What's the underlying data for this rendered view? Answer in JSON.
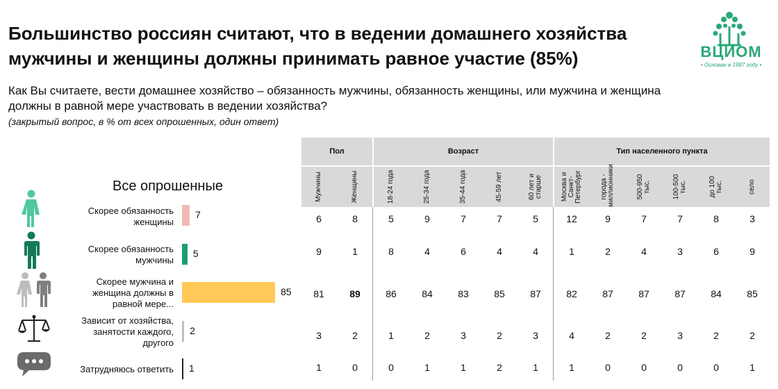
{
  "title": "Большинство россиян считают, что в ведении домашнего хозяйства мужчины и женщины должны принимать равное участие (85%)",
  "question": "Как Вы считаете, вести домашнее хозяйство – обязанность мужчины, обязанность женщины, или мужчина и женщина должны в равной мере участвовать в ведении хозяйства?",
  "note": "(закрытый вопрос, в % от всех опрошенных, один ответ)",
  "logo": {
    "name": "ВЦИОМ",
    "subtitle": "• Основан в 1987 году •",
    "color": "#2aa878"
  },
  "all_label": "Все опрошенные",
  "icons": [
    "woman-icon",
    "man-icon",
    "man-woman-icon",
    "scales-icon",
    "speech-bubble-icon"
  ],
  "groups": [
    "Пол",
    "Возраст",
    "Тип населенного пункта"
  ],
  "columns": [
    "Мужчины",
    "Женщины",
    "18-24 года",
    "25-34 года",
    "35-44 года",
    "45-59 лет",
    "60 лет и старше",
    "Москва и Санкт-Петербург",
    "города - миллионники",
    "500-950 тыс.",
    "100-500 тыс.",
    "до 100 тыс.",
    "село"
  ],
  "chart_data": {
    "type": "bar",
    "orientation": "horizontal",
    "categories": [
      "Скорее обязанность женщины",
      "Скорее обязанность мужчины",
      "Скорее мужчина и женщина должны в равной мере...",
      "Зависит от хозяйства, занятости каждого, другого",
      "Затрудняюсь ответить"
    ],
    "values": [
      7,
      5,
      85,
      2,
      1
    ],
    "colors": [
      "#f2b9b3",
      "#1e9e6e",
      "#ffc857",
      "#bfbfbf",
      "#222222"
    ],
    "xlim": [
      0,
      85
    ]
  },
  "table": {
    "rows": [
      [
        "6",
        "8",
        "5",
        "9",
        "7",
        "7",
        "5",
        "12",
        "9",
        "7",
        "7",
        "8",
        "3"
      ],
      [
        "9",
        "1",
        "8",
        "4",
        "6",
        "4",
        "4",
        "1",
        "2",
        "4",
        "3",
        "6",
        "9"
      ],
      [
        "81",
        "89",
        "86",
        "84",
        "83",
        "85",
        "87",
        "82",
        "87",
        "87",
        "87",
        "84",
        "85"
      ],
      [
        "3",
        "2",
        "1",
        "2",
        "3",
        "2",
        "3",
        "4",
        "2",
        "2",
        "3",
        "2",
        "2"
      ],
      [
        "1",
        "0",
        "0",
        "1",
        "1",
        "2",
        "1",
        "1",
        "0",
        "0",
        "0",
        "0",
        "1"
      ]
    ],
    "bold_cells": [
      [
        2,
        1
      ]
    ]
  }
}
